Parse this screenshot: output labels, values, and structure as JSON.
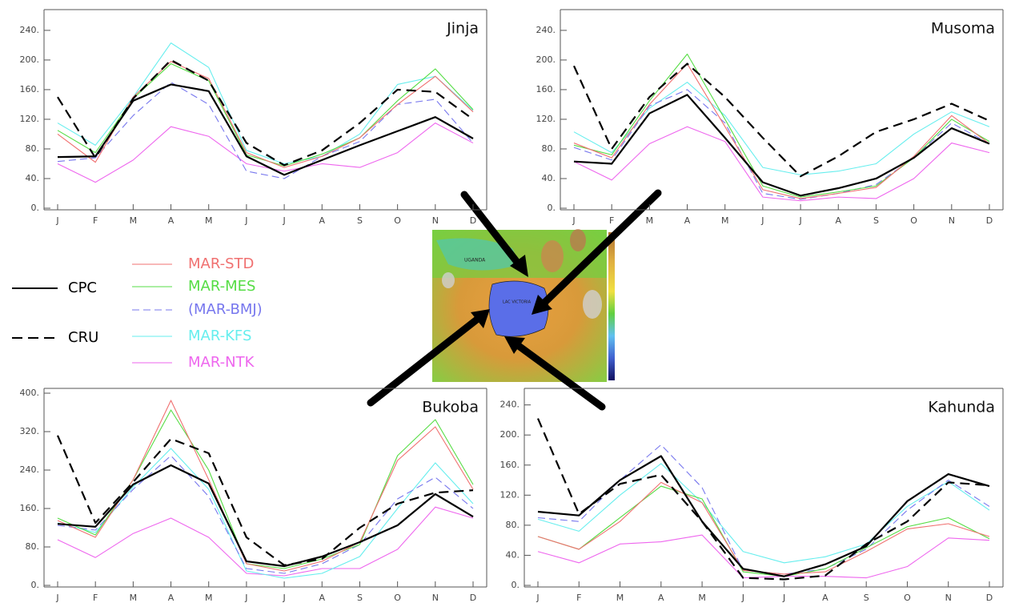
{
  "chart_data": [
    {
      "type": "line",
      "title": "Jinja",
      "categories": [
        "J",
        "F",
        "M",
        "A",
        "M",
        "J",
        "J",
        "A",
        "S",
        "O",
        "N",
        "D"
      ],
      "ylim": [
        0,
        268
      ],
      "yticks": [
        {
          "value": 0,
          "label": "0."
        },
        {
          "value": 40,
          "label": "40."
        },
        {
          "value": 80,
          "label": "80."
        },
        {
          "value": 120,
          "label": "120."
        },
        {
          "value": 160,
          "label": "160."
        },
        {
          "value": 200,
          "label": "200."
        },
        {
          "value": 240,
          "label": "240."
        }
      ],
      "series": [
        {
          "name": "CPC",
          "color": "#000000",
          "dash": false,
          "values": [
            69,
            70,
            145,
            167,
            158,
            70,
            45,
            65,
            85,
            104,
            123,
            94
          ]
        },
        {
          "name": "CRU",
          "color": "#000000",
          "dash": true,
          "values": [
            150,
            68,
            148,
            200,
            172,
            88,
            58,
            78,
            115,
            160,
            157,
            120
          ]
        },
        {
          "name": "MAR-STD",
          "color": "#f07070",
          "dash": false,
          "values": [
            100,
            62,
            150,
            198,
            175,
            75,
            55,
            70,
            95,
            140,
            178,
            130
          ]
        },
        {
          "name": "MAR-MES",
          "color": "#55dd44",
          "dash": false,
          "values": [
            105,
            75,
            148,
            195,
            172,
            72,
            57,
            73,
            95,
            145,
            188,
            133
          ]
        },
        {
          "name": "(MAR-BMJ)",
          "color": "#7777ee",
          "dash": true,
          "values": [
            63,
            68,
            125,
            170,
            140,
            50,
            40,
            70,
            90,
            140,
            147,
            88
          ]
        },
        {
          "name": "MAR-KFS",
          "color": "#66eeee",
          "dash": false,
          "values": [
            115,
            85,
            150,
            223,
            190,
            78,
            60,
            70,
            100,
            167,
            178,
            132
          ]
        },
        {
          "name": "MAR-NTK",
          "color": "#ee66ee",
          "dash": false,
          "values": [
            60,
            35,
            65,
            110,
            97,
            60,
            50,
            60,
            55,
            75,
            115,
            88
          ]
        }
      ]
    },
    {
      "type": "line",
      "title": "Musoma",
      "categories": [
        "J",
        "F",
        "M",
        "A",
        "M",
        "J",
        "J",
        "A",
        "S",
        "O",
        "N",
        "D"
      ],
      "ylim": [
        0,
        268
      ],
      "yticks": [
        {
          "value": 0,
          "label": "0."
        },
        {
          "value": 40,
          "label": "40."
        },
        {
          "value": 80,
          "label": "80."
        },
        {
          "value": 120,
          "label": "120."
        },
        {
          "value": 160,
          "label": "160."
        },
        {
          "value": 200,
          "label": "200."
        },
        {
          "value": 240,
          "label": "240."
        }
      ],
      "series": [
        {
          "name": "CPC",
          "color": "#000000",
          "dash": false,
          "values": [
            63,
            60,
            128,
            153,
            95,
            35,
            17,
            27,
            40,
            68,
            108,
            87
          ]
        },
        {
          "name": "CRU",
          "color": "#000000",
          "dash": true,
          "values": [
            192,
            80,
            150,
            195,
            150,
            95,
            43,
            70,
            103,
            120,
            141,
            118
          ]
        },
        {
          "name": "MAR-STD",
          "color": "#f07070",
          "dash": false,
          "values": [
            88,
            68,
            140,
            195,
            110,
            25,
            13,
            20,
            28,
            70,
            125,
            87
          ]
        },
        {
          "name": "MAR-MES",
          "color": "#55dd44",
          "dash": false,
          "values": [
            85,
            72,
            145,
            208,
            120,
            30,
            15,
            22,
            30,
            68,
            120,
            90
          ]
        },
        {
          "name": "(MAR-BMJ)",
          "color": "#7777ee",
          "dash": true,
          "values": [
            82,
            65,
            138,
            160,
            115,
            20,
            12,
            20,
            32,
            68,
            115,
            87
          ]
        },
        {
          "name": "MAR-KFS",
          "color": "#66eeee",
          "dash": false,
          "values": [
            103,
            75,
            135,
            170,
            125,
            55,
            45,
            50,
            60,
            100,
            130,
            110
          ]
        },
        {
          "name": "MAR-NTK",
          "color": "#ee66ee",
          "dash": false,
          "values": [
            63,
            38,
            87,
            110,
            90,
            15,
            10,
            15,
            13,
            40,
            88,
            75
          ]
        }
      ]
    },
    {
      "type": "line",
      "title": "Bukoba",
      "categories": [
        "J",
        "F",
        "M",
        "A",
        "M",
        "J",
        "J",
        "A",
        "S",
        "O",
        "N",
        "D"
      ],
      "ylim": [
        0,
        410
      ],
      "yticks": [
        {
          "value": 0,
          "label": "0."
        },
        {
          "value": 80,
          "label": "80."
        },
        {
          "value": 160,
          "label": "160."
        },
        {
          "value": 240,
          "label": "240."
        },
        {
          "value": 320,
          "label": "320."
        },
        {
          "value": 400,
          "label": "400."
        }
      ],
      "series": [
        {
          "name": "CPC",
          "color": "#000000",
          "dash": false,
          "values": [
            128,
            122,
            210,
            250,
            212,
            50,
            40,
            60,
            90,
            125,
            190,
            143
          ]
        },
        {
          "name": "CRU",
          "color": "#000000",
          "dash": true,
          "values": [
            312,
            130,
            215,
            305,
            275,
            100,
            42,
            55,
            120,
            170,
            193,
            198
          ]
        },
        {
          "name": "MAR-STD",
          "color": "#f07070",
          "dash": false,
          "values": [
            135,
            100,
            220,
            385,
            220,
            45,
            30,
            50,
            90,
            260,
            330,
            200
          ]
        },
        {
          "name": "MAR-MES",
          "color": "#55dd44",
          "dash": false,
          "values": [
            140,
            105,
            220,
            365,
            240,
            45,
            35,
            55,
            85,
            270,
            345,
            210
          ]
        },
        {
          "name": "(MAR-BMJ)",
          "color": "#7777ee",
          "dash": true,
          "values": [
            125,
            115,
            200,
            270,
            185,
            35,
            25,
            45,
            85,
            180,
            225,
            160
          ]
        },
        {
          "name": "MAR-KFS",
          "color": "#66eeee",
          "dash": false,
          "values": [
            130,
            110,
            205,
            285,
            200,
            30,
            15,
            25,
            60,
            160,
            255,
            170
          ]
        },
        {
          "name": "MAR-NTK",
          "color": "#ee66ee",
          "dash": false,
          "values": [
            95,
            58,
            108,
            140,
            100,
            25,
            20,
            35,
            35,
            75,
            163,
            140
          ]
        }
      ]
    },
    {
      "type": "line",
      "title": "Kahunda",
      "categories": [
        "J",
        "F",
        "M",
        "A",
        "M",
        "J",
        "J",
        "A",
        "S",
        "O",
        "N",
        "D"
      ],
      "ylim": [
        0,
        262
      ],
      "yticks": [
        {
          "value": 0,
          "label": "0."
        },
        {
          "value": 40,
          "label": "40."
        },
        {
          "value": 80,
          "label": "80."
        },
        {
          "value": 120,
          "label": "120."
        },
        {
          "value": 160,
          "label": "160."
        },
        {
          "value": 200,
          "label": "200."
        },
        {
          "value": 240,
          "label": "240."
        }
      ],
      "series": [
        {
          "name": "CPC",
          "color": "#000000",
          "dash": false,
          "values": [
            98,
            93,
            140,
            172,
            85,
            22,
            12,
            28,
            52,
            112,
            148,
            132
          ]
        },
        {
          "name": "CRU",
          "color": "#000000",
          "dash": true,
          "values": [
            222,
            95,
            135,
            147,
            85,
            10,
            8,
            13,
            55,
            85,
            137,
            133
          ]
        },
        {
          "name": "MAR-STD",
          "color": "#f07070",
          "dash": false,
          "values": [
            65,
            48,
            85,
            137,
            110,
            20,
            15,
            18,
            45,
            75,
            82,
            65
          ]
        },
        {
          "name": "MAR-MES",
          "color": "#55dd44",
          "dash": false,
          "values": [
            65,
            48,
            90,
            132,
            115,
            18,
            12,
            22,
            50,
            78,
            90,
            62
          ]
        },
        {
          "name": "(MAR-BMJ)",
          "color": "#7777ee",
          "dash": true,
          "values": [
            90,
            85,
            140,
            187,
            130,
            20,
            15,
            22,
            48,
            100,
            140,
            105
          ]
        },
        {
          "name": "MAR-KFS",
          "color": "#66eeee",
          "dash": false,
          "values": [
            88,
            72,
            120,
            162,
            110,
            45,
            30,
            38,
            55,
            105,
            138,
            100
          ]
        },
        {
          "name": "MAR-NTK",
          "color": "#ee66ee",
          "dash": false,
          "values": [
            45,
            30,
            55,
            58,
            67,
            10,
            12,
            12,
            10,
            25,
            63,
            60
          ]
        }
      ]
    }
  ],
  "map": {
    "labels": [
      "UGANDA",
      "LAC VICTORIA"
    ]
  }
}
